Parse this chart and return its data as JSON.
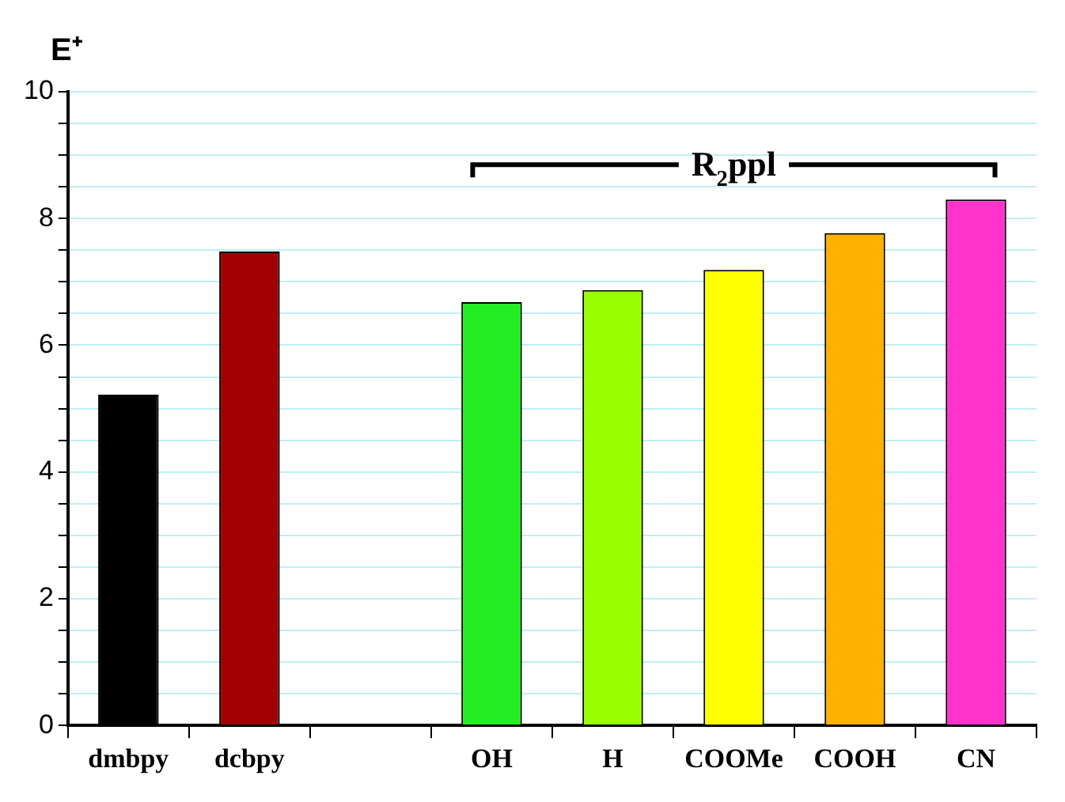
{
  "chart_data": {
    "type": "bar",
    "ylabel": "E⁺",
    "categories": [
      "dmbpy",
      "dcbpy",
      null,
      "OH",
      "H",
      "COOMe",
      "COOH",
      "CN"
    ],
    "values": [
      5.22,
      7.48,
      null,
      6.68,
      6.87,
      7.19,
      7.77,
      8.3
    ],
    "colors": [
      "#000000",
      "#a00000",
      null,
      "#22ee22",
      "#99ff00",
      "#ffff00",
      "#ffb000",
      "#ff33cc"
    ],
    "ylim": [
      0,
      10
    ],
    "yticks": [
      0,
      {
        "value": 0.5,
        "label": null
      },
      2,
      {
        "value": 1,
        "label": null
      },
      {
        "value": 1.5,
        "label": null
      },
      {
        "value": 2.5,
        "label": null
      },
      {
        "value": 3,
        "label": null
      },
      {
        "value": 3.5,
        "label": null
      },
      4,
      {
        "value": 4.5,
        "label": null
      },
      {
        "value": 5,
        "label": null
      },
      {
        "value": 5.5,
        "label": null
      },
      6,
      {
        "value": 6.5,
        "label": null
      },
      {
        "value": 7,
        "label": null
      },
      {
        "value": 7.5,
        "label": null
      },
      8,
      {
        "value": 8.5,
        "label": null
      },
      {
        "value": 9,
        "label": null
      },
      {
        "value": 9.5,
        "label": null
      },
      10
    ],
    "grid": "y",
    "legend": false,
    "annotations": [
      "R$_{2}$ppl"
    ]
  }
}
